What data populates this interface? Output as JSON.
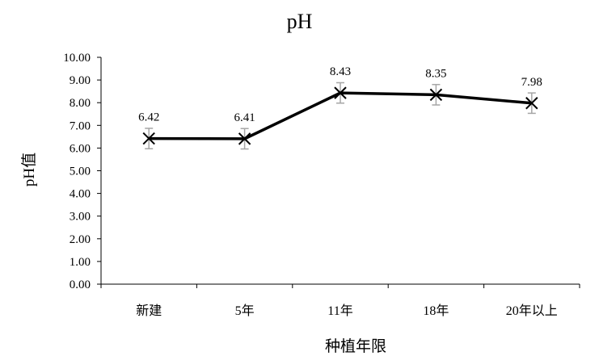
{
  "chart_data": {
    "type": "line",
    "title": "pH",
    "xlabel": "种植年限",
    "ylabel": "pH值",
    "categories": [
      "新建",
      "5年",
      "11年",
      "18年",
      "20年以上"
    ],
    "series": [
      {
        "values": [
          6.42,
          6.41,
          8.43,
          8.35,
          7.98
        ],
        "error": [
          0.45,
          0.45,
          0.45,
          0.45,
          0.45
        ],
        "data_labels": [
          "6.42",
          "6.41",
          "8.43",
          "8.35",
          "7.98"
        ]
      }
    ],
    "ylim": [
      0,
      10
    ],
    "yticks": [
      "0.00",
      "1.00",
      "2.00",
      "3.00",
      "4.00",
      "5.00",
      "6.00",
      "7.00",
      "8.00",
      "9.00",
      "10.00"
    ],
    "marker": "x",
    "line_color": "#000000",
    "error_bar_color": "#a6a6a6",
    "axis_color": "#000000",
    "grid": false,
    "legend": "none"
  }
}
